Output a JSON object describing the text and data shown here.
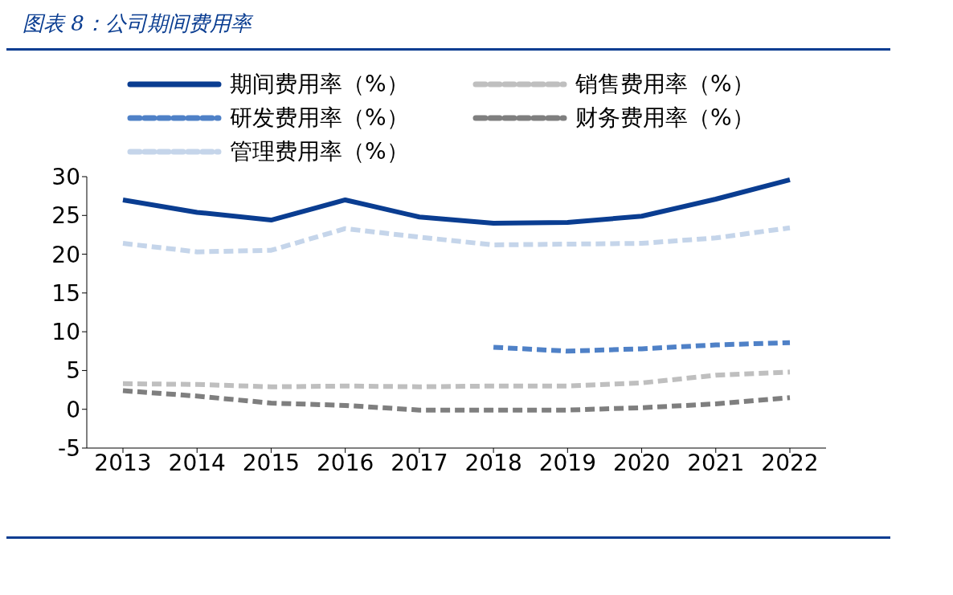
{
  "chart_data": {
    "type": "line",
    "title": "图表 8：公司期间费用率",
    "categories": [
      "2013",
      "2014",
      "2015",
      "2016",
      "2017",
      "2018",
      "2019",
      "2020",
      "2021",
      "2022"
    ],
    "series": [
      {
        "name": "期间费用率（%）",
        "color": "#0a3d91",
        "line_style": "solid",
        "values": [
          27.0,
          25.4,
          24.4,
          27.0,
          24.8,
          24.0,
          24.1,
          24.9,
          27.1,
          29.6
        ]
      },
      {
        "name": "销售费用率（%）",
        "color": "#bfbfbf",
        "line_style": "dashed",
        "values": [
          3.3,
          3.2,
          2.9,
          3.0,
          2.9,
          3.0,
          3.0,
          3.4,
          4.4,
          4.8
        ]
      },
      {
        "name": "研发费用率（%）",
        "color": "#4f81c7",
        "line_style": "dashed",
        "values": [
          null,
          null,
          null,
          null,
          null,
          8.0,
          7.5,
          7.8,
          8.3,
          8.6
        ]
      },
      {
        "name": "财务费用率（%）",
        "color": "#7f7f7f",
        "line_style": "dashed",
        "values": [
          2.4,
          1.7,
          0.8,
          0.5,
          -0.1,
          -0.1,
          -0.1,
          0.2,
          0.7,
          1.5
        ]
      },
      {
        "name": "管理费用率（%）",
        "color": "#c5d5ea",
        "line_style": "dashed",
        "values": [
          21.4,
          20.3,
          20.5,
          23.3,
          22.2,
          21.2,
          21.3,
          21.4,
          22.1,
          23.4
        ]
      }
    ],
    "ylim": [
      -5,
      30
    ],
    "yticks": [
      -5,
      0,
      5,
      10,
      15,
      20,
      25,
      30
    ],
    "grid": false,
    "legend": "top",
    "marker": "none"
  }
}
